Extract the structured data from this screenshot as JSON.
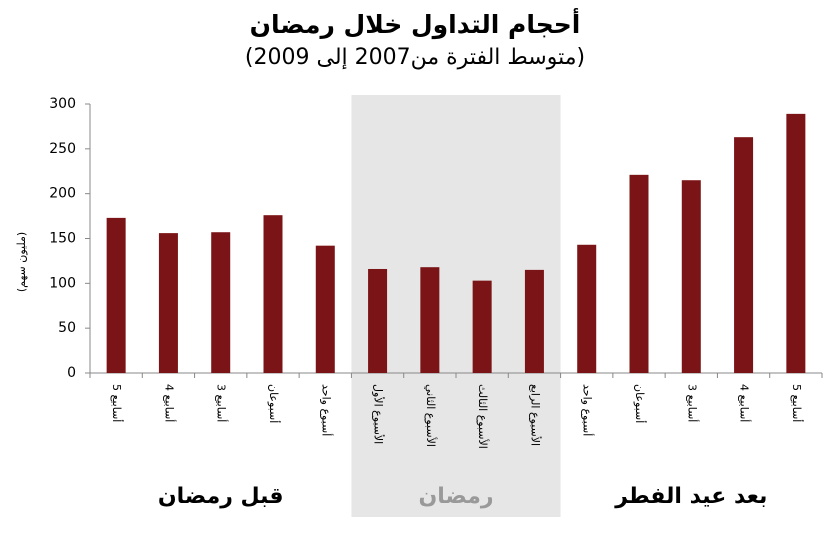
{
  "chart_data": {
    "type": "bar",
    "title": "أحجام التداول خلال رمضان",
    "subtitle": "(متوسط الفترة من2007 إلى 2009)",
    "y_label": "(مليون سهم)",
    "categories": [
      "5 أسابيع",
      "4 أسابيع",
      "3 أسابيع",
      "أسبوعان",
      "أسبوع واحد",
      "الأسبوع الأول",
      "الأسبوع الثاني",
      "الأسبوع الثالث",
      "الأسبوع الرابع",
      "أسبوع واحد",
      "أسبوعان",
      "3 أسابيع",
      "4 أسابيع",
      "5 أسابيع"
    ],
    "values": [
      173,
      156,
      157,
      176,
      142,
      116,
      118,
      103,
      115,
      143,
      221,
      215,
      263,
      289
    ],
    "color": "#7b1416",
    "ylim": [
      0,
      300
    ],
    "yticks": [
      0,
      50,
      100,
      150,
      200,
      250,
      300
    ],
    "grid": false,
    "groups": [
      {
        "label": "قبل رمضان",
        "size": 5,
        "shaded": false
      },
      {
        "label": "رمضان",
        "size": 4,
        "shaded": true
      },
      {
        "label": "بعد عيد الفطر",
        "size": 5,
        "shaded": false
      }
    ]
  }
}
